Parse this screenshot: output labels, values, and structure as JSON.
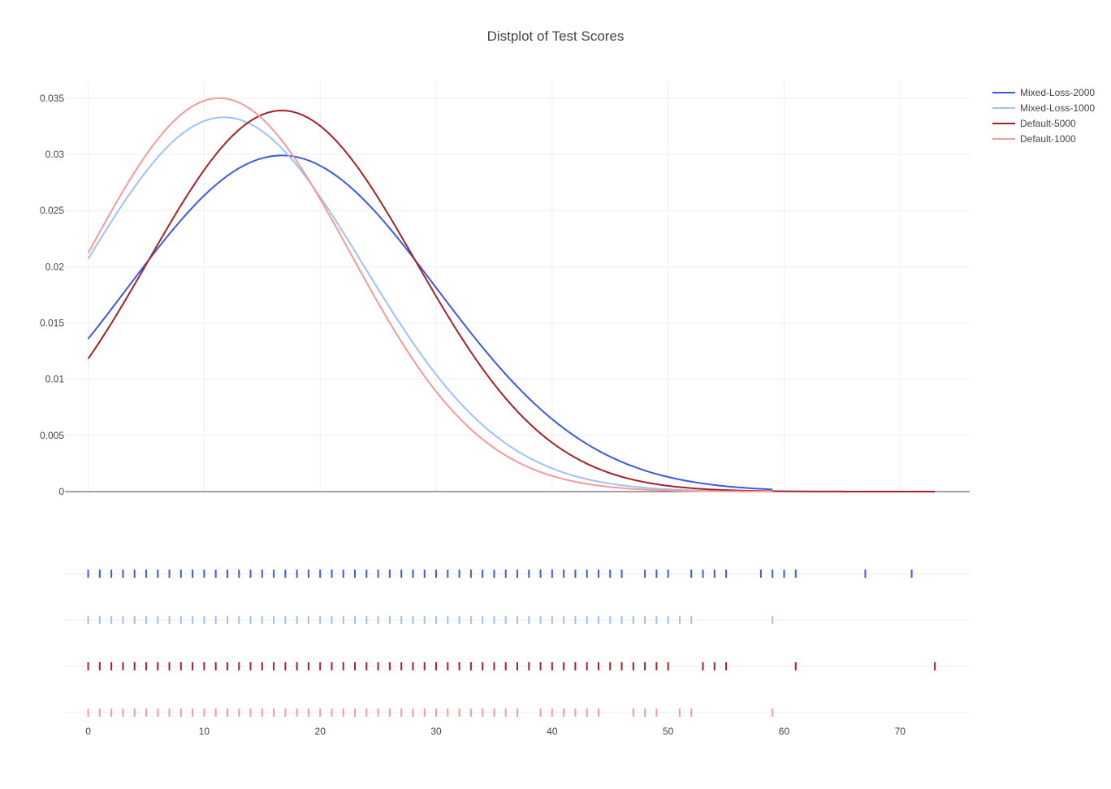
{
  "chart_data": {
    "type": "line",
    "title": "Distplot of Test Scores",
    "xlabel": "",
    "ylabel": "",
    "xlim": [
      -2,
      76
    ],
    "ylim": [
      0,
      0.0365
    ],
    "x_ticks": [
      0,
      10,
      20,
      30,
      40,
      50,
      60,
      70
    ],
    "y_ticks": [
      0,
      0.005,
      0.01,
      0.015,
      0.02,
      0.025,
      0.03,
      0.035
    ],
    "y_tick_labels": [
      "0",
      "0.005",
      "0.01",
      "0.015",
      "0.02",
      "0.025",
      "0.03",
      "0.035"
    ],
    "grid": true,
    "legend_position": "top-right",
    "series": [
      {
        "name": "Mixed-Loss-2000",
        "color": "#3d59e0",
        "curve": {
          "peak_x": 16.7,
          "peak_y": 0.0299,
          "sigma": 13.3,
          "x_max": 59
        },
        "rug": [
          0,
          1,
          2,
          3,
          4,
          5,
          6,
          7,
          8,
          9,
          10,
          11,
          12,
          13,
          14,
          15,
          16,
          17,
          18,
          19,
          20,
          21,
          22,
          23,
          24,
          25,
          26,
          27,
          28,
          29,
          30,
          31,
          32,
          33,
          34,
          35,
          36,
          37,
          38,
          39,
          40,
          41,
          42,
          43,
          44,
          45,
          46,
          48,
          49,
          50,
          52,
          53,
          54,
          55,
          58,
          59,
          60,
          61,
          67,
          71
        ]
      },
      {
        "name": "Mixed-Loss-1000",
        "color": "#9fc2f5",
        "curve": {
          "peak_x": 11.7,
          "peak_y": 0.0333,
          "sigma": 12.0,
          "x_max": 59
        },
        "rug": [
          0,
          1,
          2,
          3,
          4,
          5,
          6,
          7,
          8,
          9,
          10,
          11,
          12,
          13,
          14,
          15,
          16,
          17,
          18,
          19,
          20,
          21,
          22,
          23,
          24,
          25,
          26,
          27,
          28,
          29,
          30,
          31,
          32,
          33,
          34,
          35,
          36,
          37,
          38,
          39,
          40,
          41,
          42,
          43,
          44,
          45,
          46,
          47,
          48,
          49,
          50,
          51,
          52,
          59
        ]
      },
      {
        "name": "Default-5000",
        "color": "#a52228",
        "curve": {
          "peak_x": 16.7,
          "peak_y": 0.0339,
          "sigma": 11.5,
          "x_max": 73
        },
        "rug": [
          0,
          1,
          2,
          3,
          4,
          5,
          6,
          7,
          8,
          9,
          10,
          11,
          12,
          13,
          14,
          15,
          16,
          17,
          18,
          19,
          20,
          21,
          22,
          23,
          24,
          25,
          26,
          27,
          28,
          29,
          30,
          31,
          32,
          33,
          34,
          35,
          36,
          37,
          38,
          39,
          40,
          41,
          42,
          43,
          44,
          45,
          46,
          47,
          48,
          49,
          50,
          53,
          54,
          55,
          61,
          73
        ]
      },
      {
        "name": "Default-1000",
        "color": "#f59a9a",
        "curve": {
          "peak_x": 11.3,
          "peak_y": 0.035,
          "sigma": 11.3,
          "x_max": 59
        },
        "rug": [
          0,
          1,
          2,
          3,
          4,
          5,
          6,
          7,
          8,
          9,
          10,
          11,
          12,
          13,
          14,
          15,
          16,
          17,
          18,
          19,
          20,
          21,
          22,
          23,
          24,
          25,
          26,
          27,
          28,
          29,
          30,
          31,
          32,
          33,
          34,
          35,
          36,
          37,
          39,
          40,
          41,
          42,
          43,
          44,
          47,
          48,
          49,
          51,
          52,
          59
        ]
      }
    ]
  }
}
